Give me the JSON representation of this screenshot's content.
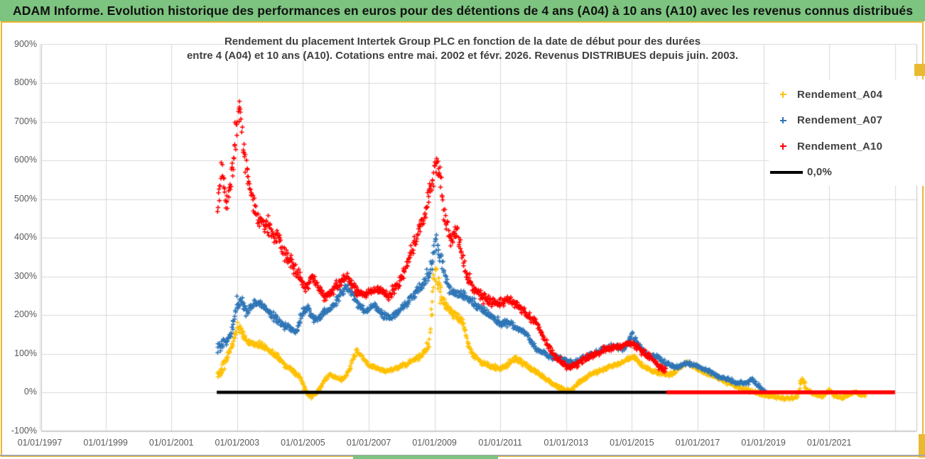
{
  "header": {
    "title": "ADAM Informe. Evolution historique des performances en euros pour des détentions de 4 ans (A04) à 10 ans (A10) avec les revenus connus distribués"
  },
  "colors": {
    "header_green": "#7cc47f",
    "gold_border": "#e9b932",
    "grid": "#d9d9d9",
    "plot_border": "#c3c3c3",
    "axis_text": "#595959",
    "title_text": "#404040",
    "series_a04": "#FFC000",
    "series_a07": "#2E75B6",
    "series_a10": "#FF0000",
    "zero_line_black": "#000000",
    "zero_line_red": "#FF0000"
  },
  "chart_data": {
    "type": "scatter",
    "marker": "plus",
    "title": "Rendement du placement Intertek Group PLC en fonction de la date de début pour des durées entre 4 (A04) et 10 ans (A10). Cotations entre mai. 2002 et févr. 2026. Revenus DISTRIBUES depuis juin. 2003.",
    "title_line1": "Rendement du placement Intertek Group PLC en fonction de la date de début pour des durées",
    "title_line2": "entre 4 (A04) et 10 ans (A10). Cotations entre mai. 2002 et févr. 2026. Revenus DISTRIBUES depuis juin. 2003.",
    "x_axis": {
      "tick_labels": [
        "01/01/1997",
        "01/01/1999",
        "01/01/2001",
        "01/01/2003",
        "01/01/2005",
        "01/01/2007",
        "01/01/2009",
        "01/01/2011",
        "01/01/2013",
        "01/01/2015",
        "01/01/2017",
        "01/01/2019",
        "01/01/2021"
      ],
      "tick_start_year": 1997,
      "tick_step_years": 2,
      "extra_unlabeled_gridline_year": 2023,
      "data_start_year": 2002.4
    },
    "y_axis": {
      "min": -100,
      "max": 900,
      "step": 100,
      "unit": "%",
      "tick_labels": [
        "900%",
        "800%",
        "700%",
        "600%",
        "500%",
        "400%",
        "300%",
        "200%",
        "100%",
        "0%",
        "-100%"
      ]
    },
    "legend_position": "right",
    "grid": true,
    "series": [
      {
        "name": "Rendement_A04",
        "color": "#FFC000",
        "end_year": 2022.1,
        "trend": [
          [
            2002.4,
            45,
            20
          ],
          [
            2002.6,
            70,
            18
          ],
          [
            2002.8,
            110,
            18
          ],
          [
            2003.0,
            170,
            20
          ],
          [
            2003.1,
            160,
            15
          ],
          [
            2003.3,
            135,
            12
          ],
          [
            2003.5,
            120,
            12
          ],
          [
            2003.7,
            125,
            12
          ],
          [
            2003.9,
            112,
            12
          ],
          [
            2004.1,
            100,
            12
          ],
          [
            2004.3,
            85,
            10
          ],
          [
            2004.5,
            65,
            10
          ],
          [
            2004.7,
            55,
            10
          ],
          [
            2004.9,
            40,
            10
          ],
          [
            2005.05,
            12,
            10
          ],
          [
            2005.2,
            -10,
            10
          ],
          [
            2005.35,
            -5,
            8
          ],
          [
            2005.5,
            8,
            8
          ],
          [
            2005.65,
            30,
            8
          ],
          [
            2005.8,
            45,
            8
          ],
          [
            2006.0,
            38,
            8
          ],
          [
            2006.2,
            32,
            8
          ],
          [
            2006.4,
            55,
            8
          ],
          [
            2006.55,
            95,
            15
          ],
          [
            2006.65,
            110,
            12
          ],
          [
            2006.8,
            90,
            10
          ],
          [
            2007.0,
            72,
            8
          ],
          [
            2007.25,
            62,
            8
          ],
          [
            2007.5,
            55,
            8
          ],
          [
            2007.75,
            60,
            8
          ],
          [
            2008.0,
            68,
            8
          ],
          [
            2008.3,
            80,
            10
          ],
          [
            2008.6,
            95,
            10
          ],
          [
            2008.85,
            130,
            20
          ],
          [
            2009.0,
            330,
            50
          ],
          [
            2009.1,
            290,
            40
          ],
          [
            2009.25,
            235,
            25
          ],
          [
            2009.45,
            212,
            15
          ],
          [
            2009.65,
            200,
            15
          ],
          [
            2009.85,
            180,
            15
          ],
          [
            2010.05,
            115,
            15
          ],
          [
            2010.25,
            90,
            10
          ],
          [
            2010.5,
            75,
            10
          ],
          [
            2010.8,
            65,
            10
          ],
          [
            2011.0,
            60,
            10
          ],
          [
            2011.2,
            70,
            10
          ],
          [
            2011.45,
            88,
            10
          ],
          [
            2011.7,
            75,
            10
          ],
          [
            2012.0,
            58,
            10
          ],
          [
            2012.3,
            40,
            8
          ],
          [
            2012.6,
            20,
            8
          ],
          [
            2012.9,
            8,
            8
          ],
          [
            2013.15,
            5,
            8
          ],
          [
            2013.4,
            25,
            8
          ],
          [
            2013.7,
            45,
            8
          ],
          [
            2014.0,
            55,
            8
          ],
          [
            2014.3,
            65,
            8
          ],
          [
            2014.6,
            75,
            8
          ],
          [
            2014.9,
            85,
            8
          ],
          [
            2015.05,
            92,
            10
          ],
          [
            2015.3,
            70,
            8
          ],
          [
            2015.6,
            55,
            8
          ],
          [
            2015.9,
            50,
            8
          ],
          [
            2016.15,
            45,
            8
          ],
          [
            2016.45,
            62,
            8
          ],
          [
            2016.7,
            78,
            8
          ],
          [
            2017.0,
            60,
            8
          ],
          [
            2017.25,
            50,
            8
          ],
          [
            2017.55,
            40,
            8
          ],
          [
            2017.85,
            28,
            8
          ],
          [
            2018.1,
            18,
            8
          ],
          [
            2018.4,
            8,
            8
          ],
          [
            2018.7,
            2,
            8
          ],
          [
            2019.0,
            -6,
            8
          ],
          [
            2019.3,
            -12,
            6
          ],
          [
            2019.6,
            -16,
            6
          ],
          [
            2019.9,
            -14,
            6
          ],
          [
            2020.05,
            -12,
            6
          ],
          [
            2020.13,
            25,
            15
          ],
          [
            2020.2,
            35,
            12
          ],
          [
            2020.3,
            8,
            8
          ],
          [
            2020.5,
            -5,
            6
          ],
          [
            2020.8,
            -10,
            6
          ],
          [
            2021.0,
            5,
            8
          ],
          [
            2021.15,
            -8,
            6
          ],
          [
            2021.4,
            -14,
            6
          ],
          [
            2021.65,
            -5,
            6
          ],
          [
            2021.8,
            0,
            6
          ],
          [
            2022.0,
            -8,
            6
          ],
          [
            2022.1,
            -6,
            6
          ]
        ]
      },
      {
        "name": "Rendement_A07",
        "color": "#2E75B6",
        "end_year": 2019.1,
        "trend": [
          [
            2002.4,
            120,
            25
          ],
          [
            2002.6,
            130,
            20
          ],
          [
            2002.8,
            145,
            20
          ],
          [
            2003.0,
            225,
            30
          ],
          [
            2003.12,
            235,
            20
          ],
          [
            2003.3,
            210,
            20
          ],
          [
            2003.5,
            230,
            15
          ],
          [
            2003.7,
            230,
            15
          ],
          [
            2003.9,
            215,
            15
          ],
          [
            2004.1,
            195,
            15
          ],
          [
            2004.3,
            180,
            15
          ],
          [
            2004.55,
            170,
            12
          ],
          [
            2004.8,
            155,
            12
          ],
          [
            2005.0,
            210,
            15
          ],
          [
            2005.15,
            215,
            12
          ],
          [
            2005.35,
            185,
            12
          ],
          [
            2005.55,
            200,
            12
          ],
          [
            2005.8,
            215,
            12
          ],
          [
            2006.05,
            240,
            15
          ],
          [
            2006.3,
            275,
            15
          ],
          [
            2006.45,
            265,
            15
          ],
          [
            2006.65,
            230,
            15
          ],
          [
            2006.9,
            210,
            12
          ],
          [
            2007.15,
            225,
            12
          ],
          [
            2007.4,
            205,
            12
          ],
          [
            2007.6,
            190,
            12
          ],
          [
            2007.85,
            205,
            12
          ],
          [
            2008.1,
            225,
            15
          ],
          [
            2008.4,
            255,
            15
          ],
          [
            2008.7,
            285,
            20
          ],
          [
            2008.92,
            330,
            30
          ],
          [
            2009.03,
            390,
            40
          ],
          [
            2009.15,
            360,
            30
          ],
          [
            2009.3,
            305,
            25
          ],
          [
            2009.5,
            265,
            20
          ],
          [
            2009.7,
            255,
            20
          ],
          [
            2009.9,
            250,
            20
          ],
          [
            2010.15,
            235,
            15
          ],
          [
            2010.45,
            215,
            15
          ],
          [
            2010.75,
            195,
            15
          ],
          [
            2011.0,
            175,
            15
          ],
          [
            2011.25,
            180,
            12
          ],
          [
            2011.5,
            170,
            12
          ],
          [
            2011.8,
            150,
            12
          ],
          [
            2012.05,
            115,
            12
          ],
          [
            2012.35,
            100,
            10
          ],
          [
            2012.65,
            90,
            10
          ],
          [
            2012.95,
            85,
            10
          ],
          [
            2013.25,
            75,
            10
          ],
          [
            2013.55,
            90,
            10
          ],
          [
            2013.85,
            100,
            10
          ],
          [
            2014.15,
            112,
            10
          ],
          [
            2014.45,
            120,
            10
          ],
          [
            2014.75,
            112,
            10
          ],
          [
            2015.0,
            148,
            15
          ],
          [
            2015.25,
            115,
            12
          ],
          [
            2015.5,
            95,
            10
          ],
          [
            2015.8,
            90,
            10
          ],
          [
            2016.05,
            75,
            10
          ],
          [
            2016.35,
            65,
            8
          ],
          [
            2016.65,
            75,
            8
          ],
          [
            2016.95,
            70,
            8
          ],
          [
            2017.25,
            58,
            8
          ],
          [
            2017.55,
            45,
            8
          ],
          [
            2017.85,
            35,
            8
          ],
          [
            2018.15,
            25,
            8
          ],
          [
            2018.45,
            22,
            8
          ],
          [
            2018.65,
            35,
            8
          ],
          [
            2018.85,
            15,
            8
          ],
          [
            2019.05,
            3,
            6
          ]
        ]
      },
      {
        "name": "Rendement_A10",
        "color": "#FF0000",
        "end_year": 2016.05,
        "trend": [
          [
            2002.4,
            480,
            90
          ],
          [
            2002.55,
            560,
            60
          ],
          [
            2002.7,
            490,
            50
          ],
          [
            2002.85,
            570,
            50
          ],
          [
            2003.0,
            700,
            80
          ],
          [
            2003.08,
            760,
            40
          ],
          [
            2003.2,
            620,
            60
          ],
          [
            2003.35,
            540,
            50
          ],
          [
            2003.55,
            470,
            40
          ],
          [
            2003.75,
            440,
            35
          ],
          [
            2004.0,
            420,
            35
          ],
          [
            2004.25,
            400,
            30
          ],
          [
            2004.5,
            350,
            30
          ],
          [
            2004.75,
            320,
            25
          ],
          [
            2004.95,
            290,
            25
          ],
          [
            2005.1,
            265,
            20
          ],
          [
            2005.25,
            300,
            15
          ],
          [
            2005.45,
            280,
            15
          ],
          [
            2005.65,
            245,
            15
          ],
          [
            2005.85,
            260,
            15
          ],
          [
            2006.1,
            280,
            20
          ],
          [
            2006.35,
            295,
            15
          ],
          [
            2006.6,
            265,
            15
          ],
          [
            2006.85,
            250,
            15
          ],
          [
            2007.1,
            260,
            15
          ],
          [
            2007.35,
            265,
            15
          ],
          [
            2007.6,
            250,
            15
          ],
          [
            2007.9,
            280,
            20
          ],
          [
            2008.2,
            340,
            25
          ],
          [
            2008.5,
            410,
            30
          ],
          [
            2008.75,
            470,
            35
          ],
          [
            2008.95,
            560,
            45
          ],
          [
            2009.03,
            600,
            40
          ],
          [
            2009.15,
            570,
            40
          ],
          [
            2009.3,
            450,
            45
          ],
          [
            2009.5,
            390,
            40
          ],
          [
            2009.65,
            420,
            40
          ],
          [
            2009.8,
            370,
            30
          ],
          [
            2010.0,
            300,
            25
          ],
          [
            2010.25,
            265,
            20
          ],
          [
            2010.5,
            245,
            20
          ],
          [
            2010.8,
            230,
            15
          ],
          [
            2011.05,
            230,
            15
          ],
          [
            2011.3,
            240,
            15
          ],
          [
            2011.55,
            220,
            15
          ],
          [
            2011.8,
            200,
            15
          ],
          [
            2012.05,
            185,
            15
          ],
          [
            2012.3,
            145,
            15
          ],
          [
            2012.6,
            100,
            12
          ],
          [
            2012.9,
            75,
            12
          ],
          [
            2013.15,
            65,
            12
          ],
          [
            2013.45,
            80,
            12
          ],
          [
            2013.75,
            95,
            12
          ],
          [
            2014.05,
            105,
            12
          ],
          [
            2014.35,
            115,
            12
          ],
          [
            2014.65,
            120,
            12
          ],
          [
            2014.9,
            125,
            12
          ],
          [
            2015.05,
            125,
            15
          ],
          [
            2015.3,
            105,
            12
          ],
          [
            2015.55,
            90,
            12
          ],
          [
            2015.8,
            70,
            12
          ],
          [
            2016.05,
            55,
            10
          ]
        ]
      }
    ],
    "zero_line": {
      "label": "0,0%",
      "value": 0,
      "black_segment": {
        "start_year": 2002.38,
        "end_year": 2016.05,
        "color": "#000000"
      },
      "red_segment": {
        "start_year": 2016.05,
        "end_year": 2023.0,
        "color": "#FF0000"
      }
    }
  }
}
